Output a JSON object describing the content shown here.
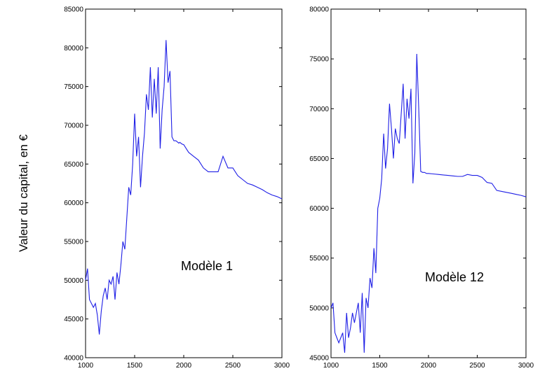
{
  "ylabel": "Valeur du capital, en €",
  "colors": {
    "series": "#1f1fe6",
    "axes": "#000000",
    "background": "#ffffff"
  },
  "chart_data": [
    {
      "type": "line",
      "annotation": "Modèle 1",
      "xlim": [
        1000,
        3000
      ],
      "ylim": [
        40000,
        85000
      ],
      "xticks": [
        "1000",
        "1500",
        "2000",
        "2500",
        "3000"
      ],
      "yticks": [
        "40000",
        "45000",
        "50000",
        "55000",
        "60000",
        "65000",
        "70000",
        "75000",
        "80000",
        "85000"
      ],
      "grid": false,
      "series": [
        {
          "x": [
            1000,
            1020,
            1040,
            1060,
            1080,
            1100,
            1120,
            1140,
            1160,
            1180,
            1200,
            1220,
            1240,
            1260,
            1280,
            1300,
            1320,
            1340,
            1360,
            1380,
            1400,
            1420,
            1440,
            1460,
            1480,
            1500,
            1520,
            1540,
            1560,
            1580,
            1600,
            1620,
            1640,
            1660,
            1680,
            1700,
            1720,
            1740,
            1760,
            1780,
            1800,
            1820,
            1840,
            1860,
            1880,
            1900,
            1920,
            1940,
            1950,
            1960,
            1980,
            2000,
            2050,
            2100,
            2150,
            2200,
            2250,
            2300,
            2350,
            2400,
            2450,
            2500,
            2550,
            2600,
            2650,
            2700,
            2750,
            2800,
            2850,
            2900,
            2950,
            3000
          ],
          "y": [
            50000,
            51500,
            47500,
            47000,
            46500,
            47000,
            45500,
            43000,
            46000,
            48000,
            49000,
            47500,
            50000,
            49500,
            50500,
            47500,
            51000,
            49500,
            52000,
            55000,
            54000,
            58000,
            62000,
            61000,
            65000,
            71500,
            66000,
            68500,
            62000,
            66000,
            69000,
            74000,
            72000,
            77500,
            71000,
            76000,
            71500,
            77500,
            67000,
            72000,
            75000,
            81000,
            75500,
            77000,
            68500,
            68000,
            68000,
            67800,
            67700,
            67800,
            67600,
            67500,
            66500,
            66000,
            65500,
            64500,
            64000,
            64000,
            64000,
            66000,
            64500,
            64500,
            63500,
            63000,
            62500,
            62300,
            62000,
            61700,
            61300,
            61000,
            60800,
            60500
          ]
        }
      ]
    },
    {
      "type": "line",
      "annotation": "Modèle 12",
      "xlim": [
        1000,
        3000
      ],
      "ylim": [
        45000,
        80000
      ],
      "xticks": [
        "1000",
        "1500",
        "2000",
        "2500",
        "3000"
      ],
      "yticks": [
        "45000",
        "50000",
        "55000",
        "60000",
        "65000",
        "70000",
        "75000",
        "80000"
      ],
      "grid": false,
      "series": [
        {
          "x": [
            1000,
            1020,
            1040,
            1060,
            1080,
            1100,
            1120,
            1140,
            1160,
            1180,
            1200,
            1220,
            1240,
            1260,
            1280,
            1300,
            1320,
            1340,
            1360,
            1380,
            1400,
            1420,
            1440,
            1460,
            1480,
            1500,
            1520,
            1540,
            1560,
            1580,
            1600,
            1620,
            1640,
            1660,
            1680,
            1700,
            1720,
            1740,
            1760,
            1780,
            1800,
            1820,
            1840,
            1860,
            1880,
            1900,
            1920,
            1940,
            1960,
            1980,
            2000,
            2050,
            2100,
            2150,
            2200,
            2250,
            2300,
            2350,
            2400,
            2450,
            2500,
            2550,
            2600,
            2650,
            2700,
            2750,
            2800,
            2850,
            2900,
            2950,
            3000
          ],
          "y": [
            50000,
            50500,
            47500,
            47000,
            46500,
            47000,
            47500,
            45500,
            49500,
            47000,
            48000,
            49500,
            48500,
            49500,
            50500,
            47500,
            51500,
            45500,
            51000,
            50000,
            53000,
            52000,
            56000,
            53500,
            60000,
            61000,
            63000,
            67500,
            64000,
            66000,
            70500,
            68000,
            65000,
            68000,
            67000,
            66500,
            69500,
            72500,
            67000,
            71000,
            69000,
            72000,
            62500,
            65500,
            75500,
            70000,
            63700,
            63600,
            63600,
            63500,
            63500,
            63450,
            63400,
            63350,
            63300,
            63250,
            63200,
            63200,
            63400,
            63300,
            63300,
            63100,
            62600,
            62500,
            61800,
            61700,
            61600,
            61500,
            61400,
            61300,
            61150
          ]
        }
      ]
    }
  ]
}
